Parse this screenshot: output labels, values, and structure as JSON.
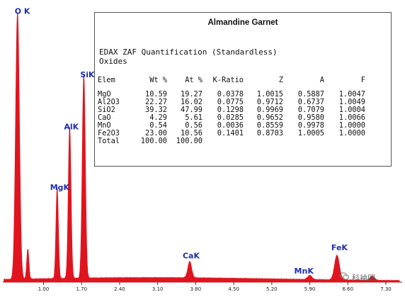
{
  "chart_data": {
    "type": "line",
    "title": "",
    "xlabel": "",
    "ylabel": "",
    "xlim": [
      0.25,
      7.6
    ],
    "ylim": [
      0,
      100
    ],
    "x_ticks": [
      "1.00",
      "1.70",
      "2.40",
      "3.10",
      "3.80",
      "4.50",
      "5.20",
      "5.90",
      "6.60",
      "7.30"
    ],
    "series": [
      {
        "color": "#e0141e",
        "peaks": [
          {
            "x": 0.52,
            "y": 97,
            "width": 0.035
          },
          {
            "x": 0.71,
            "y": 11,
            "width": 0.02
          },
          {
            "x": 1.25,
            "y": 33,
            "width": 0.022
          },
          {
            "x": 1.48,
            "y": 55,
            "width": 0.025
          },
          {
            "x": 1.74,
            "y": 74,
            "width": 0.028
          },
          {
            "x": 3.69,
            "y": 6,
            "width": 0.035
          },
          {
            "x": 5.9,
            "y": 1.5,
            "width": 0.04
          },
          {
            "x": 6.4,
            "y": 9,
            "width": 0.045
          },
          {
            "x": 7.05,
            "y": 1.5,
            "width": 0.04
          }
        ],
        "background": 1.2
      }
    ],
    "peak_labels": [
      {
        "label": "O K",
        "x": 0.52,
        "y": 97
      },
      {
        "label": "MgK",
        "x": 1.25,
        "y": 33
      },
      {
        "label": "AlK",
        "x": 1.48,
        "y": 55
      },
      {
        "label": "SiK",
        "x": 1.74,
        "y": 74
      },
      {
        "label": "CaK",
        "x": 3.69,
        "y": 6
      },
      {
        "label": "MnK",
        "x": 5.9,
        "y": 1.5
      },
      {
        "label": "FeK",
        "x": 6.4,
        "y": 9
      }
    ]
  },
  "quant": {
    "title": "Almandine Garnet",
    "heading_line1": "EDAX ZAF Quantification (Standardless)",
    "heading_line2": "Oxides",
    "columns": [
      "Elem",
      "Wt %",
      "At %",
      "K-Ratio",
      "Z",
      "A",
      "F"
    ],
    "rows": [
      [
        "MgO",
        "10.59",
        "19.27",
        "0.0378",
        "1.0015",
        "0.5887",
        "1.0047"
      ],
      [
        "Al2O3",
        "22.27",
        "16.02",
        "0.0775",
        "0.9712",
        "0.6737",
        "1.0049"
      ],
      [
        "SiO2",
        "39.32",
        "47.99",
        "0.1298",
        "0.9969",
        "0.7079",
        "1.0004"
      ],
      [
        "CaO",
        "4.29",
        "5.61",
        "0.0285",
        "0.9652",
        "0.9580",
        "1.0066"
      ],
      [
        "MnO",
        "0.54",
        "0.56",
        "0.0036",
        "0.8559",
        "0.9978",
        "1.0000"
      ],
      [
        "Fe2O3",
        "23.00",
        "10.56",
        "0.1401",
        "0.8703",
        "1.0005",
        "1.0000"
      ],
      [
        "Total",
        "100.00",
        "100.00",
        "",
        "",
        "",
        ""
      ]
    ]
  },
  "watermark": {
    "text": "科袖网"
  }
}
